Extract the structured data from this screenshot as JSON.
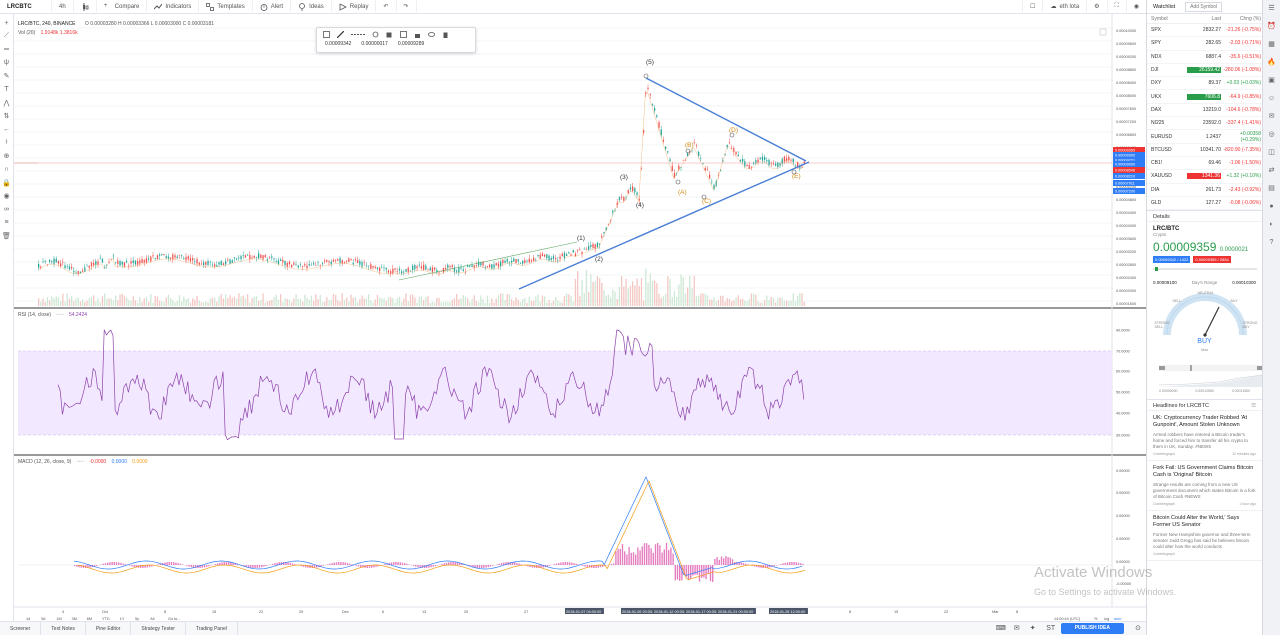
{
  "toolbar": {
    "symbol": "LRCBTC",
    "interval": "4h",
    "compare": "Compare",
    "indicators": "Indicators",
    "templates": "Templates",
    "alert": "Alert",
    "ideas": "Ideas",
    "replay": "Replay",
    "user": "eth lota"
  },
  "legend": {
    "main": "LRC/BTC, 240, BINANCE",
    "ohlc": "O 0.00003280  H 0.00003366  L 0.00003000  C 0.00003181",
    "vol_label": "Vol (20)",
    "vol_values": "1.9148k  1.3816k",
    "rsi_label": "RSI (14, close)",
    "rsi_value": "54.2424",
    "macd_label": "MACD (12, 26, close, 9)",
    "macd_values": [
      "-0.0000",
      "0.0000",
      "0.0000"
    ]
  },
  "drawing_toolbar": {
    "values": [
      "0.00009342",
      "0.00000017",
      "0.00009289"
    ]
  },
  "chart_data": [
    {
      "type": "line",
      "title": "LRC/BTC, 240, BINANCE",
      "y_axis_labels": [
        "0.00010000",
        "0.00009600",
        "0.00009200",
        "0.00008800",
        "0.00008400",
        "0.00008000",
        "0.00007600",
        "0.00007200",
        "0.00006800",
        "0.00006400",
        "0.00006000",
        "0.00005600",
        "0.00005200",
        "0.00004800",
        "0.00004400",
        "0.00004000",
        "0.00003600",
        "0.00003200",
        "0.00002800",
        "0.00002400",
        "0.00002000",
        "0.00001600"
      ],
      "price_tags": [
        "0.00009359",
        "0.00009300",
        "0.00009221",
        "0.00009000",
        "0.00008546",
        "0.00008210",
        "0.00007911",
        "0.00007200"
      ],
      "wave_labels": [
        "(1)",
        "(2)",
        "(3)",
        "(4)",
        "(5)",
        "(A)",
        "(B)",
        "(C)",
        "(D)",
        "(E)"
      ],
      "x_tick_labels": [
        "4",
        "Oct",
        "8",
        "15",
        "22",
        "29",
        "Dec",
        "6",
        "13",
        "20",
        "27",
        "2018-01-07 04:00:00",
        "2018-01-09 20:00:00",
        "2018-01-12 00:00:00",
        "2018-01-17 00:00:00",
        "2018-01-21 00:00:00",
        "2018-01-25 12:00:00",
        "8",
        "15",
        "22",
        "Mar",
        "8"
      ]
    },
    {
      "type": "line",
      "title": "RSI (14, close)",
      "y_axis_labels": [
        "90.0000",
        "70.0000",
        "60.0000",
        "50.0000",
        "40.0000",
        "30.0000"
      ],
      "levels": [
        70,
        30
      ]
    },
    {
      "type": "line",
      "title": "MACD (12, 26, close, 9)",
      "y_axis_labels": [
        "0.00000",
        "0.00000",
        "0.00000",
        "0.00000",
        "0.00000",
        "-0.00000"
      ]
    }
  ],
  "bottom": {
    "ranges": [
      "1d",
      "5d",
      "1M",
      "3M",
      "6M",
      "YTD",
      "1Y",
      "5y",
      "All",
      "Go to..."
    ],
    "time": "14:00:44 (UTC)",
    "pct": "%",
    "log": "log",
    "auto": "auto",
    "tabs": [
      "Screener",
      "Text Notes",
      "Pine Editor",
      "Strategy Tester",
      "Trading Panel"
    ],
    "publish": "PUBLISH IDEA"
  },
  "watchlist": {
    "title": "Watchlist",
    "add": "Add Symbol",
    "columns": [
      "Symbol",
      "Last",
      "Chng (%)"
    ],
    "rows": [
      {
        "symbol": "SPX",
        "last": "2832.27",
        "chg": "-21.26 (-0.75%)",
        "up": false
      },
      {
        "symbol": "SPY",
        "last": "282.65",
        "chg": "-2.03 (-0.71%)",
        "up": false
      },
      {
        "symbol": "NDX",
        "last": "6887.4",
        "chg": "-35.6 (-0.51%)",
        "up": false
      },
      {
        "symbol": "DJI",
        "last": "26159.42",
        "chg": "-280.06 (-1.08%)",
        "up": false
      },
      {
        "symbol": "DXY",
        "last": "89.37",
        "chg": "+0.03 (+0.03%)",
        "up": true
      },
      {
        "symbol": "UKX",
        "last": "7606.8",
        "chg": "-64.9 (-0.85%)",
        "up": false
      },
      {
        "symbol": "DAX",
        "last": "13219.0",
        "chg": "-104.6 (-0.78%)",
        "up": false
      },
      {
        "symbol": "NI225",
        "last": "23592.0",
        "chg": "-337.4 (-1.41%)",
        "up": false
      },
      {
        "symbol": "EURUSD",
        "last": "1.2437",
        "chg": "+0.00358 (+0.29%)",
        "up": true
      },
      {
        "symbol": "BTCUSD",
        "last": "10341.70",
        "chg": "-820.90 (-7.35%)",
        "up": false
      },
      {
        "symbol": "CB1!",
        "last": "69.46",
        "chg": "-1.06 (-1.50%)",
        "up": false
      },
      {
        "symbol": "XAUUSD",
        "last": "1341.36",
        "chg": "+1.32 (+0.10%)",
        "up": true
      },
      {
        "symbol": "DIA",
        "last": "261.73",
        "chg": "-2.43 (-0.92%)",
        "up": false
      },
      {
        "symbol": "GLD",
        "last": "127.27",
        "chg": "-0.08 (-0.06%)",
        "up": false
      }
    ]
  },
  "details": {
    "title": "Details",
    "symbol": "LRC/BTC",
    "exchange": "Crypto",
    "price": "0.00009359",
    "change": "0.0000021",
    "bid": "0.00009342 / 1422",
    "ask": "0.00009359 / 2834",
    "range_low": "0.00009100",
    "range_label": "Day's Range",
    "range_high": "0.00010300",
    "gauge": {
      "neutral": "NEUTRAL",
      "sell": "SELL",
      "buy_lbl": "BUY",
      "strong_sell": "STRONG SELL",
      "strong_buy": "STRONG BUY",
      "signal": "BUY",
      "sub": "Now"
    },
    "slider_ticks": [
      "0.00000000",
      "0.00012560",
      "0.00011560"
    ]
  },
  "headlines": {
    "title": "Headlines for LRCBTC",
    "items": [
      {
        "title": "UK: Cryptocurrency Trader Robbed 'At Gunpoint', Amount Stolen Unknown",
        "body": "Armed robbers have entered a Bitcoin trader's home and forced him to transfer all his crypto to them in UK, Sunday. #NEWS",
        "source": "Cointelegraph",
        "time": "12 minutes ago"
      },
      {
        "title": "Fork Fail: US Government Claims Bitcoin Cash is 'Original' Bitcoin",
        "body": "Strange results are coming from a new US government document which states Bitcoin is a fork of Bitcoin Cash #NEWS",
        "source": "Cointelegraph",
        "time": "1 hour ago"
      },
      {
        "title": "Bitcoin Could Alter the World,' Says Former US Senator",
        "body": "Former New Hampshire governor and three-term senator Judd Gregg has said he believes bitcoin could alter how the world conducts",
        "source": "Cointelegraph",
        "time": ""
      }
    ]
  },
  "iconbar": {
    "labels": [
      "Watchlist",
      "Alerts",
      "Data Window",
      "Hotlists",
      "Calendar",
      "Social"
    ]
  },
  "watermark": {
    "title": "Activate Windows",
    "sub": "Go to Settings to activate Windows."
  }
}
